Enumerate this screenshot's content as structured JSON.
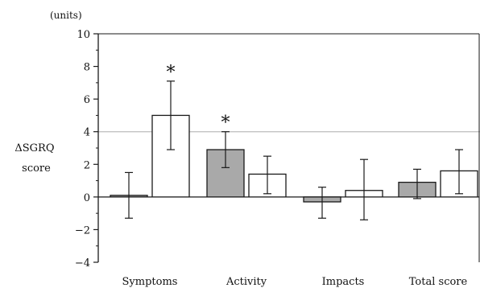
{
  "chart_data": {
    "type": "bar",
    "unit_label": "(units)",
    "ylabel_line1": "ΔSGRQ",
    "ylabel_line2": "score",
    "categories": [
      "Symptoms",
      "Activity",
      "Impacts",
      "Total score"
    ],
    "yticks": [
      "10",
      "8",
      "6",
      "4",
      "2",
      "0",
      "−2",
      "−4"
    ],
    "ylim": [
      -4,
      10
    ],
    "reference_line": 4,
    "grid": false,
    "colors": {
      "shaded": "#a9a9a9",
      "open": "#ffffff",
      "outline": "#1a1a1a",
      "reference": "#bdbdbd"
    },
    "series": [
      {
        "style": "shaded",
        "values": [
          0.1,
          2.9,
          -0.3,
          0.9
        ],
        "err_low": [
          -1.3,
          1.8,
          -1.3,
          -0.1
        ],
        "err_high": [
          1.5,
          4.0,
          0.6,
          1.7
        ],
        "marker": [
          "",
          "*",
          "",
          ""
        ]
      },
      {
        "style": "open",
        "values": [
          5.0,
          1.4,
          0.4,
          1.6
        ],
        "err_low": [
          2.9,
          0.2,
          -1.4,
          0.2
        ],
        "err_high": [
          7.1,
          2.5,
          2.3,
          2.9
        ],
        "marker": [
          "*",
          "",
          "",
          ""
        ]
      }
    ]
  }
}
